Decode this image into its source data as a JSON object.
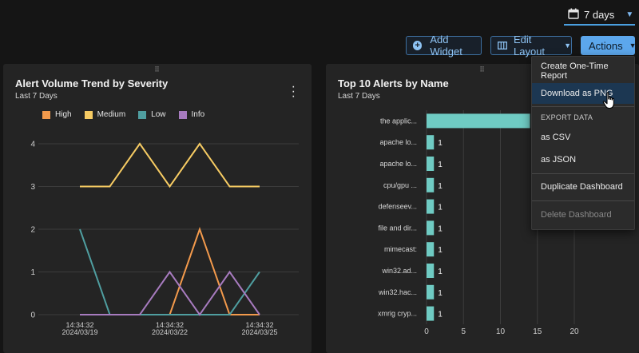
{
  "header": {
    "date_range": "7 days",
    "add_widget_label": "Add Widget",
    "edit_layout_label": "Edit Layout",
    "actions_label": "Actions"
  },
  "icons": {
    "date": "calendar-icon",
    "add": "plus-circle-icon",
    "layout": "columns-icon",
    "more": "kebab-menu-icon",
    "drag": "drag-handle-icon",
    "pointer": "hand-pointer-icon"
  },
  "colors": {
    "accent": "#5ca7ec",
    "high": "#f39a4c",
    "medium": "#f6cb63",
    "low": "#4f9ea0",
    "info": "#a77bbf",
    "bar": "#6fcbc3"
  },
  "widgets": {
    "left": {
      "title": "Alert Volume Trend by Severity",
      "subtitle": "Last 7 Days"
    },
    "right": {
      "title": "Top 10 Alerts by Name",
      "subtitle": "Last 7 Days"
    }
  },
  "actions_menu": {
    "create_report": "Create One-Time Report",
    "download_png": "Download as PNG",
    "export_header": "EXPORT DATA",
    "as_csv": "as CSV",
    "as_json": "as JSON",
    "duplicate": "Duplicate Dashboard",
    "delete": "Delete Dashboard"
  },
  "chart_data": [
    {
      "type": "line",
      "title": "Alert Volume Trend by Severity",
      "subtitle": "Last 7 Days",
      "x_ticks": [
        {
          "time": "14:34:32",
          "date": "2024/03/19",
          "index": 0
        },
        {
          "time": "14:34:32",
          "date": "2024/03/22",
          "index": 3
        },
        {
          "time": "14:34:32",
          "date": "2024/03/25",
          "index": 6
        }
      ],
      "y_ticks": [
        "0",
        "1",
        "2",
        "3",
        "4"
      ],
      "ylim": [
        0,
        4
      ],
      "x_count": 7,
      "grid": true,
      "legend": "top-left",
      "series": [
        {
          "name": "High",
          "color": "#f39a4c",
          "values": [
            0,
            0,
            0,
            0,
            2,
            0,
            0
          ]
        },
        {
          "name": "Medium",
          "color": "#f6cb63",
          "values": [
            3,
            3,
            4,
            3,
            4,
            3,
            3
          ]
        },
        {
          "name": "Low",
          "color": "#4f9ea0",
          "values": [
            2,
            0,
            0,
            0,
            0,
            0,
            1
          ]
        },
        {
          "name": "Info",
          "color": "#a77bbf",
          "values": [
            0,
            0,
            0,
            1,
            0,
            1,
            0
          ]
        }
      ]
    },
    {
      "type": "bar",
      "orientation": "horizontal",
      "title": "Top 10 Alerts by Name",
      "subtitle": "Last 7 Days",
      "categories": [
        "the applic...",
        "apache lo...",
        "apache lo...",
        "cpu/gpu ...",
        "defenseev...",
        "file and dir...",
        "mimecast:",
        "win32.ad...",
        "win32.hac...",
        "xmrig cryp..."
      ],
      "values": [
        14,
        1,
        1,
        1,
        1,
        1,
        1,
        1,
        1,
        1
      ],
      "value_labels": [
        "",
        "1",
        "1",
        "1",
        "1",
        "1",
        "1",
        "1",
        "1",
        "1"
      ],
      "x_ticks": [
        "0",
        "5",
        "10",
        "15",
        "20"
      ],
      "xlim": [
        0,
        20
      ],
      "grid": true
    }
  ]
}
